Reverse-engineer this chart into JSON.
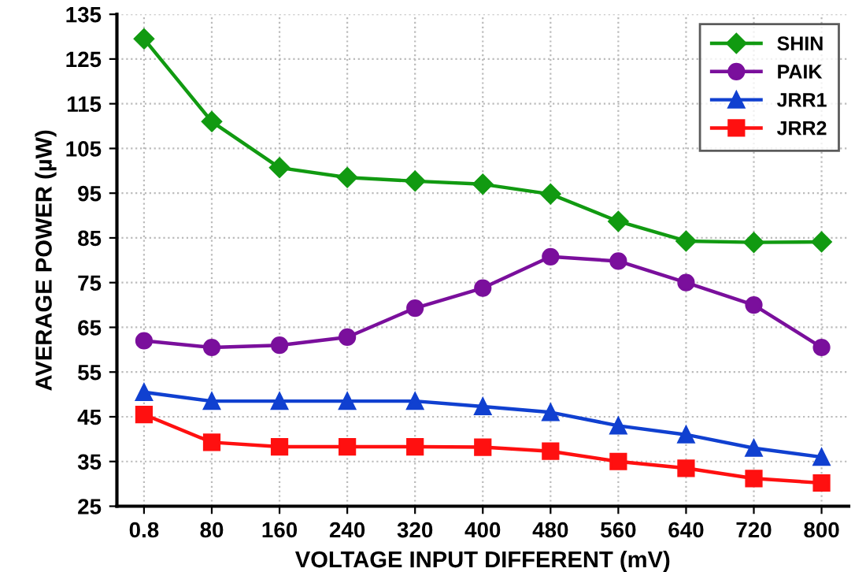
{
  "chart_data": {
    "type": "line",
    "xlabel": "VOLTAGE INPUT DIFFERENT (mV)",
    "ylabel": "AVERAGE POWER (µW)",
    "categories": [
      "0.8",
      "80",
      "160",
      "240",
      "320",
      "400",
      "480",
      "560",
      "640",
      "720",
      "800"
    ],
    "ylim": [
      25,
      135
    ],
    "yticks": [
      25,
      35,
      45,
      55,
      65,
      75,
      85,
      95,
      105,
      115,
      125,
      135
    ],
    "grid": true,
    "legend": "top right",
    "line_style": "solid",
    "series": [
      {
        "name": "SHIN",
        "color": "#119a11",
        "marker": "diamond",
        "values": [
          129.5,
          111,
          100.7,
          98.5,
          97.7,
          97,
          94.8,
          88.7,
          84.3,
          84,
          84.1
        ]
      },
      {
        "name": "PAIK",
        "color": "#7a0f9c",
        "marker": "circle",
        "values": [
          62,
          60.5,
          61,
          62.8,
          69.3,
          73.8,
          80.8,
          79.8,
          75,
          70,
          60.5
        ]
      },
      {
        "name": "JRR1",
        "color": "#1040d0",
        "marker": "triangle",
        "values": [
          50.5,
          48.5,
          48.5,
          48.5,
          48.5,
          47.3,
          46,
          43,
          41,
          38,
          36
        ]
      },
      {
        "name": "JRR2",
        "color": "#ff1010",
        "marker": "square",
        "values": [
          45.5,
          39.3,
          38.3,
          38.3,
          38.3,
          38.2,
          37.3,
          35,
          33.5,
          31.2,
          30.2
        ]
      }
    ]
  }
}
